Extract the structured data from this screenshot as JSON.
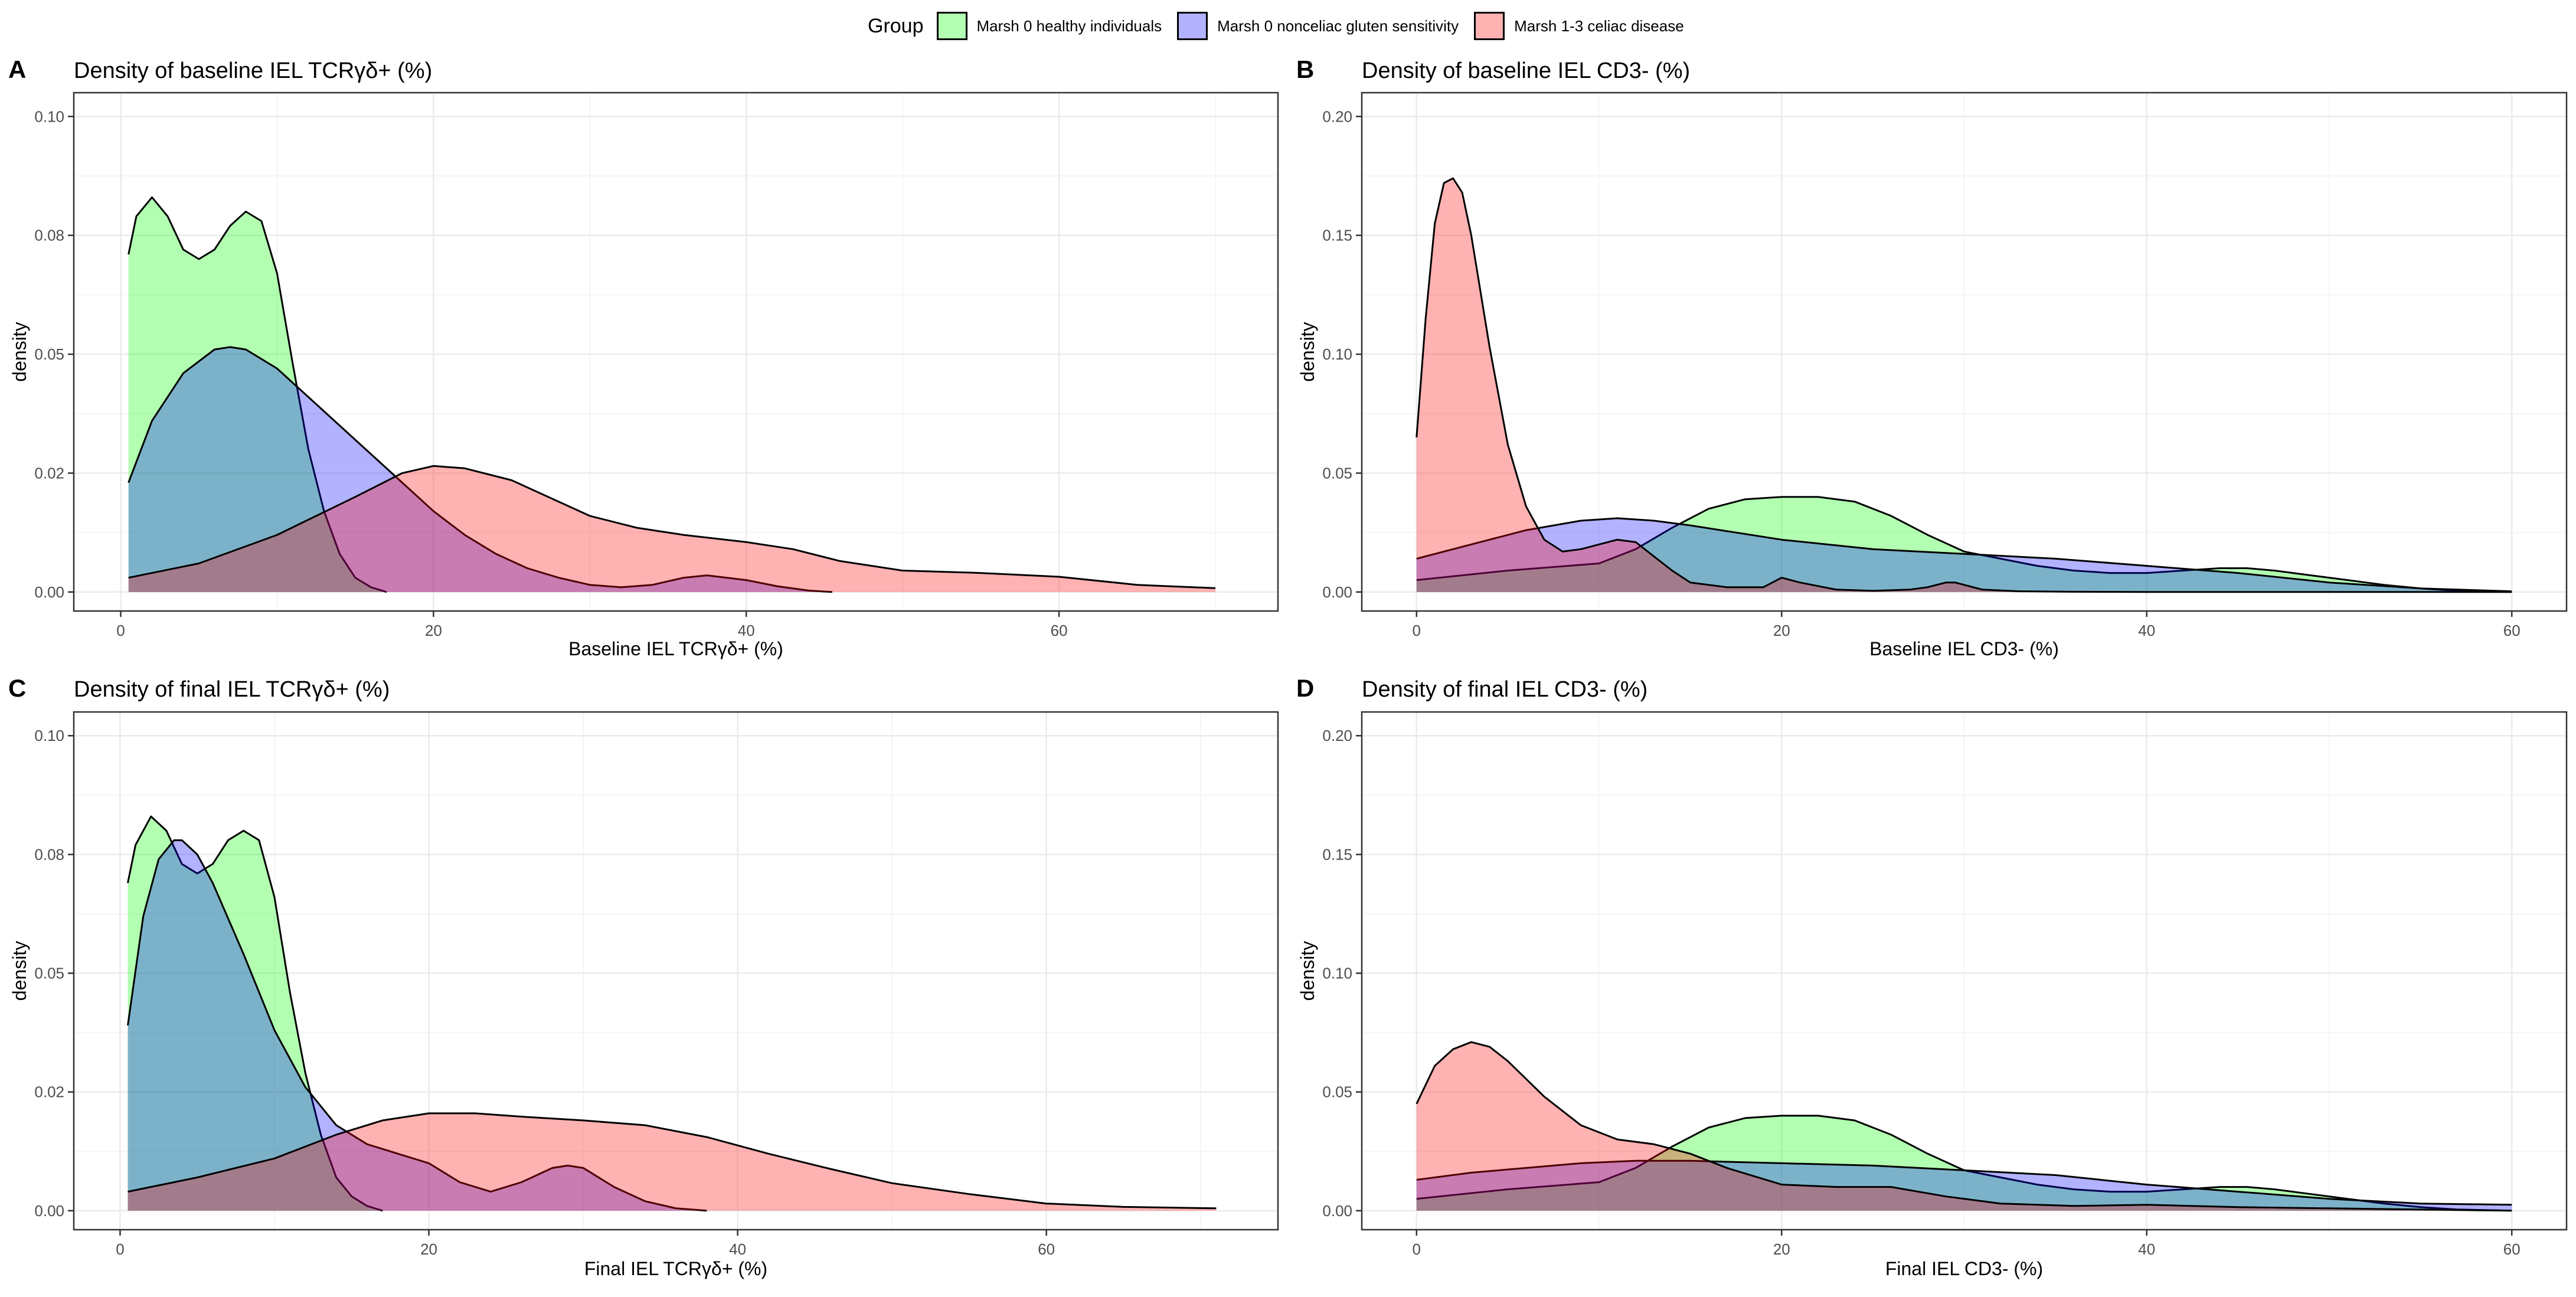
{
  "legend": {
    "title": "Group",
    "items": [
      {
        "label": "Marsh 0 healthy individuals",
        "color": "#00ff00"
      },
      {
        "label": "Marsh 0 nonceliac gluten sensitivity",
        "color": "#0000ff"
      },
      {
        "label": "Marsh 1-3 celiac disease",
        "color": "#ff0000"
      }
    ]
  },
  "chart_data": [
    {
      "panel": "A",
      "type": "area",
      "title": "Density of baseline IEL TCRγδ+ (%)",
      "xlabel": "Baseline IEL TCRγδ+ (%)",
      "ylabel": "density",
      "xlim": [
        -3,
        74
      ],
      "ylim": [
        -0.004,
        0.105
      ],
      "xticks": [
        0,
        20,
        40,
        60
      ],
      "yticks": [
        0.0,
        0.025,
        0.05,
        0.075,
        0.1
      ],
      "ytick_labels": [
        "0.00",
        "0.02",
        "0.05",
        "0.08",
        "0.10"
      ],
      "series": [
        {
          "name": "Marsh 0 healthy individuals",
          "color": "#00ff00",
          "x": [
            0.5,
            1,
            2,
            3,
            4,
            5,
            6,
            7,
            8,
            9,
            10,
            11,
            12,
            13,
            14,
            15,
            16,
            17
          ],
          "y": [
            0.071,
            0.079,
            0.083,
            0.079,
            0.072,
            0.07,
            0.072,
            0.077,
            0.08,
            0.078,
            0.067,
            0.048,
            0.03,
            0.017,
            0.008,
            0.003,
            0.001,
            0.0
          ]
        },
        {
          "name": "Marsh 0 nonceliac gluten sensitivity",
          "color": "#0000ff",
          "x": [
            0.5,
            2,
            4,
            6,
            7,
            8,
            10,
            12,
            14,
            16,
            18,
            20,
            22,
            24,
            26,
            28,
            30,
            32,
            34,
            36,
            37.5,
            40,
            42,
            44,
            45.5
          ],
          "y": [
            0.023,
            0.036,
            0.046,
            0.051,
            0.0515,
            0.051,
            0.047,
            0.041,
            0.035,
            0.029,
            0.023,
            0.017,
            0.012,
            0.008,
            0.005,
            0.003,
            0.0015,
            0.001,
            0.0015,
            0.003,
            0.0035,
            0.0025,
            0.0012,
            0.0003,
            0.0
          ]
        },
        {
          "name": "Marsh 1-3 celiac disease",
          "color": "#ff0000",
          "x": [
            0.5,
            5,
            10,
            15,
            18,
            20,
            22,
            25,
            28,
            30,
            33,
            36,
            40,
            43,
            46,
            50,
            55,
            60,
            65,
            70
          ],
          "y": [
            0.003,
            0.006,
            0.012,
            0.02,
            0.025,
            0.0265,
            0.026,
            0.0235,
            0.019,
            0.016,
            0.0135,
            0.012,
            0.0105,
            0.009,
            0.0065,
            0.0045,
            0.004,
            0.0032,
            0.0015,
            0.0008
          ]
        }
      ]
    },
    {
      "panel": "B",
      "type": "area",
      "title": "Density of baseline IEL CD3- (%)",
      "xlabel": "Baseline IEL CD3- (%)",
      "ylabel": "density",
      "xlim": [
        -3,
        63
      ],
      "ylim": [
        -0.008,
        0.21
      ],
      "xticks": [
        0,
        20,
        40,
        60
      ],
      "yticks": [
        0.0,
        0.05,
        0.1,
        0.15,
        0.2
      ],
      "ytick_labels": [
        "0.00",
        "0.05",
        "0.10",
        "0.15",
        "0.20"
      ],
      "series": [
        {
          "name": "Marsh 0 healthy individuals",
          "color": "#00ff00",
          "x": [
            0,
            5,
            10,
            12,
            14,
            16,
            18,
            20,
            22,
            24,
            26,
            28,
            30,
            32,
            34,
            36,
            38,
            40,
            42,
            44,
            45.5,
            47,
            49,
            51,
            53,
            55,
            57,
            60
          ],
          "y": [
            0.005,
            0.009,
            0.012,
            0.018,
            0.027,
            0.035,
            0.039,
            0.04,
            0.04,
            0.038,
            0.032,
            0.024,
            0.017,
            0.014,
            0.011,
            0.009,
            0.008,
            0.008,
            0.009,
            0.01,
            0.01,
            0.009,
            0.007,
            0.005,
            0.003,
            0.0015,
            0.0005,
            0.0
          ]
        },
        {
          "name": "Marsh 0 nonceliac gluten sensitivity",
          "color": "#0000ff",
          "x": [
            0,
            3,
            6,
            9,
            11,
            13,
            15,
            20,
            25,
            30,
            35,
            40,
            45,
            50,
            55,
            60
          ],
          "y": [
            0.014,
            0.02,
            0.026,
            0.03,
            0.031,
            0.03,
            0.028,
            0.022,
            0.018,
            0.016,
            0.014,
            0.011,
            0.008,
            0.004,
            0.0015,
            0.0003
          ]
        },
        {
          "name": "Marsh 1-3 celiac disease",
          "color": "#ff0000",
          "x": [
            0,
            0.5,
            1,
            1.5,
            2,
            2.5,
            3,
            4,
            5,
            6,
            7,
            8,
            9,
            10,
            11,
            12,
            13,
            14,
            15,
            17,
            19,
            20,
            21,
            23,
            25,
            27,
            28,
            29,
            29.5,
            30,
            31,
            33,
            36,
            40,
            45,
            50,
            55,
            60
          ],
          "y": [
            0.065,
            0.115,
            0.155,
            0.172,
            0.174,
            0.168,
            0.15,
            0.103,
            0.062,
            0.036,
            0.022,
            0.017,
            0.018,
            0.02,
            0.022,
            0.021,
            0.015,
            0.009,
            0.004,
            0.002,
            0.002,
            0.006,
            0.004,
            0.001,
            0.0005,
            0.001,
            0.002,
            0.004,
            0.004,
            0.003,
            0.001,
            0.0003,
            0.0001,
            0.0,
            0.0,
            0.0,
            0.0,
            0.0
          ]
        }
      ]
    },
    {
      "panel": "C",
      "type": "area",
      "title": "Density of final IEL TCRγδ+ (%)",
      "xlabel": "Final IEL TCRγδ+ (%)",
      "ylabel": "density",
      "xlim": [
        -3,
        75
      ],
      "ylim": [
        -0.004,
        0.105
      ],
      "xticks": [
        0,
        20,
        40,
        60
      ],
      "yticks": [
        0.0,
        0.025,
        0.05,
        0.075,
        0.1
      ],
      "ytick_labels": [
        "0.00",
        "0.02",
        "0.05",
        "0.08",
        "0.10"
      ],
      "series": [
        {
          "name": "Marsh 0 healthy individuals",
          "color": "#00ff00",
          "x": [
            0.5,
            1,
            2,
            3,
            4,
            5,
            6,
            7,
            8,
            9,
            10,
            11,
            12,
            13,
            14,
            15,
            16,
            17
          ],
          "y": [
            0.069,
            0.077,
            0.083,
            0.08,
            0.073,
            0.071,
            0.073,
            0.078,
            0.08,
            0.078,
            0.066,
            0.046,
            0.029,
            0.016,
            0.007,
            0.003,
            0.001,
            0.0
          ]
        },
        {
          "name": "Marsh 0 nonceliac gluten sensitivity",
          "color": "#0000ff",
          "x": [
            0.5,
            1.5,
            2.5,
            3.5,
            4,
            5,
            6,
            8,
            10,
            12,
            14,
            16,
            18,
            20,
            22,
            24,
            26,
            28,
            29,
            30,
            32,
            34,
            36,
            38
          ],
          "y": [
            0.039,
            0.062,
            0.074,
            0.078,
            0.078,
            0.075,
            0.069,
            0.054,
            0.038,
            0.026,
            0.018,
            0.014,
            0.012,
            0.01,
            0.006,
            0.004,
            0.006,
            0.009,
            0.0095,
            0.009,
            0.005,
            0.002,
            0.0005,
            0.0
          ]
        },
        {
          "name": "Marsh 1-3 celiac disease",
          "color": "#ff0000",
          "x": [
            0.5,
            5,
            10,
            14,
            17,
            20,
            23,
            26,
            30,
            34,
            38,
            42,
            46,
            50,
            55,
            60,
            65,
            71
          ],
          "y": [
            0.004,
            0.007,
            0.011,
            0.016,
            0.019,
            0.0205,
            0.0205,
            0.0198,
            0.019,
            0.018,
            0.0155,
            0.012,
            0.0088,
            0.0058,
            0.0035,
            0.0015,
            0.0008,
            0.0005
          ]
        }
      ]
    },
    {
      "panel": "D",
      "type": "area",
      "title": "Density of final IEL CD3- (%)",
      "xlabel": "Final IEL CD3- (%)",
      "ylabel": "density",
      "xlim": [
        -3,
        63
      ],
      "ylim": [
        -0.008,
        0.21
      ],
      "xticks": [
        0,
        20,
        40,
        60
      ],
      "yticks": [
        0.0,
        0.05,
        0.1,
        0.15,
        0.2
      ],
      "ytick_labels": [
        "0.00",
        "0.05",
        "0.10",
        "0.15",
        "0.20"
      ],
      "series": [
        {
          "name": "Marsh 0 healthy individuals",
          "color": "#00ff00",
          "x": [
            0,
            5,
            10,
            12,
            14,
            16,
            18,
            20,
            22,
            24,
            26,
            28,
            30,
            32,
            34,
            36,
            38,
            40,
            42,
            44,
            45.5,
            47,
            49,
            51,
            53,
            55,
            57,
            60
          ],
          "y": [
            0.005,
            0.009,
            0.012,
            0.018,
            0.027,
            0.035,
            0.039,
            0.04,
            0.04,
            0.038,
            0.032,
            0.024,
            0.017,
            0.014,
            0.011,
            0.009,
            0.008,
            0.008,
            0.009,
            0.01,
            0.01,
            0.009,
            0.007,
            0.005,
            0.003,
            0.0015,
            0.0005,
            0.0
          ]
        },
        {
          "name": "Marsh 0 nonceliac gluten sensitivity",
          "color": "#0000ff",
          "x": [
            0,
            3,
            6,
            9,
            12,
            15,
            20,
            25,
            30,
            35,
            40,
            45,
            50,
            55,
            60
          ],
          "y": [
            0.013,
            0.016,
            0.018,
            0.02,
            0.021,
            0.021,
            0.02,
            0.019,
            0.017,
            0.015,
            0.011,
            0.008,
            0.005,
            0.003,
            0.0025
          ]
        },
        {
          "name": "Marsh 1-3 celiac disease",
          "color": "#ff0000",
          "x": [
            0,
            1,
            2,
            3,
            4,
            5,
            7,
            9,
            11,
            13,
            15,
            17,
            20,
            23,
            26,
            29,
            32,
            36,
            40,
            45,
            50,
            55,
            60
          ],
          "y": [
            0.045,
            0.061,
            0.068,
            0.071,
            0.069,
            0.063,
            0.048,
            0.036,
            0.03,
            0.028,
            0.024,
            0.018,
            0.011,
            0.01,
            0.01,
            0.006,
            0.003,
            0.002,
            0.0025,
            0.0015,
            0.001,
            0.0005,
            0.0
          ]
        }
      ]
    }
  ]
}
